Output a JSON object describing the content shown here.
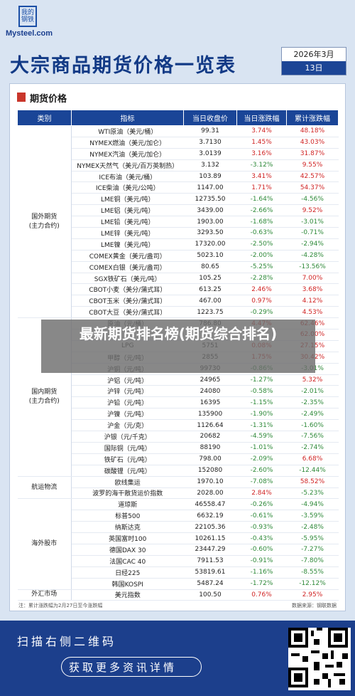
{
  "header": {
    "logo_text": "我的钢铁",
    "logo_domain": "Mysteel.com",
    "title": "大宗商品期货价格一览表",
    "year_month": "2026年3月",
    "day": "13日"
  },
  "section_title": "期货价格",
  "columns": [
    "类别",
    "指标",
    "当日收盘价",
    "当日涨跌幅",
    "累计涨跌幅"
  ],
  "groups": [
    {
      "category": "国外期货\n(主力合约)",
      "rows": [
        {
          "name": "WTI原油（美元/桶）",
          "close": "99.31",
          "day": "3.74%",
          "cum": "48.18%"
        },
        {
          "name": "NYMEX燃油（美元/加仑）",
          "close": "3.7130",
          "day": "1.45%",
          "cum": "43.03%"
        },
        {
          "name": "NYMEX汽油（美元/加仑）",
          "close": "3.0139",
          "day": "3.16%",
          "cum": "31.87%"
        },
        {
          "name": "NYMEX天然气（美元/百万英制热）",
          "close": "3.132",
          "day": "-3.12%",
          "cum": "9.55%"
        },
        {
          "name": "ICE布油（美元/桶）",
          "close": "103.89",
          "day": "3.41%",
          "cum": "42.57%"
        },
        {
          "name": "ICE柴油（美元/公吨）",
          "close": "1147.00",
          "day": "1.71%",
          "cum": "54.37%"
        },
        {
          "name": "LME铜（美元/吨）",
          "close": "12735.50",
          "day": "-1.64%",
          "cum": "-4.56%"
        },
        {
          "name": "LME铝（美元/吨）",
          "close": "3439.00",
          "day": "-2.66%",
          "cum": "9.52%"
        },
        {
          "name": "LME铅（美元/吨）",
          "close": "1903.00",
          "day": "-1.68%",
          "cum": "-3.01%"
        },
        {
          "name": "LME锌（美元/吨）",
          "close": "3293.50",
          "day": "-0.63%",
          "cum": "-0.71%"
        },
        {
          "name": "LME镍（美元/吨）",
          "close": "17320.00",
          "day": "-2.50%",
          "cum": "-2.94%"
        },
        {
          "name": "COMEX黄金（美元/盎司）",
          "close": "5023.10",
          "day": "-2.00%",
          "cum": "-4.28%"
        },
        {
          "name": "COMEX白银（美元/盎司）",
          "close": "80.65",
          "day": "-5.25%",
          "cum": "-13.56%"
        },
        {
          "name": "SGX铁矿石（美元/吨）",
          "close": "105.25",
          "day": "-2.28%",
          "cum": "7.00%"
        },
        {
          "name": "CBOT小麦（美分/蒲式耳）",
          "close": "613.25",
          "day": "2.46%",
          "cum": "3.68%"
        },
        {
          "name": "CBOT玉米（美分/蒲式耳）",
          "close": "467.00",
          "day": "0.97%",
          "cum": "4.12%"
        },
        {
          "name": "CBOT大豆（美分/蒲式耳）",
          "close": "1223.75",
          "day": "-0.29%",
          "cum": "4.53%"
        }
      ]
    },
    {
      "category": "国内期货\n(主力合约)",
      "rows": [
        {
          "name": "原油（元/桶）",
          "close": "786.80",
          "day": "4.47%",
          "cum": "62.46%"
        },
        {
          "name": "",
          "close": "",
          "day": "",
          "cum": "62.00%"
        },
        {
          "name": "LPG",
          "close": "5751",
          "day": "0.08%",
          "cum": "27.15%"
        },
        {
          "name": "甲醇（元/吨）",
          "close": "2855",
          "day": "1.75%",
          "cum": "30.42%"
        },
        {
          "name": "沪铜（元/吨）",
          "close": "99730",
          "day": "-0.86%",
          "cum": "-3.01%"
        },
        {
          "name": "沪铝（元/吨）",
          "close": "24965",
          "day": "-1.27%",
          "cum": "5.32%"
        },
        {
          "name": "沪锌（元/吨）",
          "close": "24080",
          "day": "-0.58%",
          "cum": "-2.01%"
        },
        {
          "name": "沪铅（元/吨）",
          "close": "16395",
          "day": "-1.15%",
          "cum": "-2.35%"
        },
        {
          "name": "沪镍（元/吨）",
          "close": "135900",
          "day": "-1.90%",
          "cum": "-2.49%"
        },
        {
          "name": "沪金（元/克）",
          "close": "1126.64",
          "day": "-1.31%",
          "cum": "-1.60%"
        },
        {
          "name": "沪银（元/千克）",
          "close": "20682",
          "day": "-4.59%",
          "cum": "-7.56%"
        },
        {
          "name": "国际铜（元/吨）",
          "close": "88190",
          "day": "-1.01%",
          "cum": "-2.74%"
        },
        {
          "name": "铁矿石（元/吨）",
          "close": "798.00",
          "day": "-2.09%",
          "cum": "6.68%"
        },
        {
          "name": "碳酸锂（元/吨）",
          "close": "152080",
          "day": "-2.60%",
          "cum": "-12.44%"
        }
      ]
    },
    {
      "category": "航运物流",
      "rows": [
        {
          "name": "欧线集运",
          "close": "1970.10",
          "day": "-7.08%",
          "cum": "58.52%"
        },
        {
          "name": "波罗的海干散货运价指数",
          "close": "2028.00",
          "day": "2.84%",
          "cum": "-5.23%"
        }
      ]
    },
    {
      "category": "海外股市",
      "rows": [
        {
          "name": "道琼斯",
          "close": "46558.47",
          "day": "-0.26%",
          "cum": "-4.94%"
        },
        {
          "name": "标普500",
          "close": "6632.19",
          "day": "-0.61%",
          "cum": "-3.59%"
        },
        {
          "name": "纳斯达克",
          "close": "22105.36",
          "day": "-0.93%",
          "cum": "-2.48%"
        },
        {
          "name": "英国富时100",
          "close": "10261.15",
          "day": "-0.43%",
          "cum": "-5.95%"
        },
        {
          "name": "德国DAX 30",
          "close": "23447.29",
          "day": "-0.60%",
          "cum": "-7.27%"
        },
        {
          "name": "法国CAC 40",
          "close": "7911.53",
          "day": "-0.91%",
          "cum": "-7.80%"
        },
        {
          "name": "日经225",
          "close": "53819.61",
          "day": "-1.16%",
          "cum": "-8.55%"
        },
        {
          "name": "韩国KOSPI",
          "close": "5487.24",
          "day": "-1.72%",
          "cum": "-12.12%"
        }
      ]
    },
    {
      "category": "外汇市场",
      "rows": [
        {
          "name": "美元指数",
          "close": "100.50",
          "day": "0.76%",
          "cum": "2.95%"
        }
      ]
    }
  ],
  "footnote": "注：累计涨跌幅为2月27日至今涨跌幅",
  "source": "数据来源：钢联数据",
  "banner_text": "最新期货排名榜(期货综合排名)",
  "footer": {
    "line1": "扫描右侧二维码",
    "line2": "获取更多资讯详情"
  },
  "colors": {
    "primary": "#1a4597",
    "up": "#d02424",
    "down": "#2f8a3a",
    "accent": "#c9362b"
  },
  "icons": [
    "qr-code-icon",
    "section-marker-icon",
    "arrow-right-icon"
  ]
}
